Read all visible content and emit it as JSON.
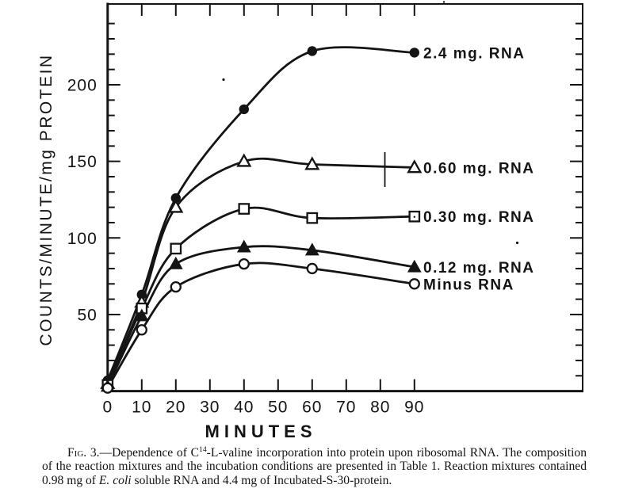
{
  "chart_data": {
    "type": "line",
    "title": "",
    "xlabel": "MINUTES",
    "ylabel": "COUNTS/MINUTE/mg PROTEIN",
    "xlim": [
      0,
      139
    ],
    "ylim": [
      0,
      253
    ],
    "x_ticks": [
      0,
      10,
      20,
      30,
      40,
      50,
      60,
      70,
      80,
      90
    ],
    "y_major_ticks": [
      50,
      100,
      150,
      200
    ],
    "y_minor_tick_step": 10,
    "y_minor_tick_max": 240,
    "grid": "off",
    "frame": "full-box-with-inward-ticks",
    "legend_position": "right-of-curve-ends",
    "x": [
      0,
      10,
      20,
      40,
      60,
      90
    ],
    "series": [
      {
        "name": "2.4 mg. RNA",
        "marker": "filled-circle",
        "values": [
          7,
          63,
          126,
          184,
          222,
          221
        ]
      },
      {
        "name": "0.60 mg. RNA",
        "marker": "open-triangle",
        "values": [
          5,
          58,
          120,
          150,
          148,
          146
        ]
      },
      {
        "name": "0.30 mg. RNA",
        "marker": "open-square",
        "values": [
          4,
          54,
          93,
          119,
          113,
          114
        ]
      },
      {
        "name": "0.12 mg. RNA",
        "marker": "filled-triangle",
        "values": [
          3,
          49,
          83,
          94,
          92,
          81
        ]
      },
      {
        "name": "Minus RNA",
        "marker": "open-circle",
        "values": [
          2,
          40,
          68,
          83,
          80,
          70
        ]
      }
    ],
    "ink_color": "#141414",
    "background_color": "#ffffff"
  },
  "caption": {
    "segments": [
      {
        "t": "Fig.",
        "s": "smallcaps"
      },
      {
        "t": " 3.—Dependence of C",
        "s": "plain"
      },
      {
        "t": "14",
        "s": "sup"
      },
      {
        "t": "-L-valine incorporation into protein upon ribosomal RNA. The composition of the reaction mixtures and the incubation conditions are presented in Table 1. Reaction mixtures contained 0.98 mg of ",
        "s": "plain"
      },
      {
        "t": "E. coli",
        "s": "italic"
      },
      {
        "t": " soluble RNA and 4.4 mg of Incubated-S-30-protein.",
        "s": "plain"
      }
    ]
  }
}
